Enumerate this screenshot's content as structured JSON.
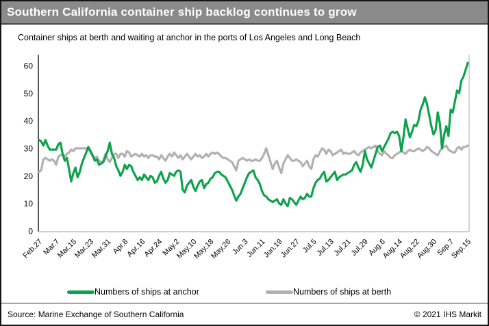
{
  "header": {
    "title": "Southern California container ship backlog continues to grow"
  },
  "subtitle": "Container ships at berth and waiting at anchor in the ports of Los Angeles and Long Beach",
  "legend": [
    {
      "label": "Numbers of ships at anchor",
      "color": "#0fa24c"
    },
    {
      "label": "Numbers of ships at berth",
      "color": "#b1b1b1"
    }
  ],
  "footer": {
    "source": "Source: Marine Exchange of Southern California",
    "copyright": "© 2021 IHS Markit"
  },
  "colors": {
    "title_bar_bg": "#8a8a8a",
    "title_text": "#ffffff",
    "anchor_line": "#0fa24c",
    "berth_line": "#b1b1b1",
    "y_axis_line": "#595959",
    "x_axis_line": "#bfbfbf",
    "plot_right_border": "#c6c6c6"
  },
  "chart_data": {
    "type": "line",
    "title": "Southern California container ship backlog continues to grow",
    "subtitle": "Container ships at berth and waiting at anchor in the ports of Los Angeles and Long Beach",
    "xlabel": "",
    "ylabel": "",
    "x_unit": "daily observations, Feb 27 – Sep 15 2021",
    "x_tick_interval_days": 8,
    "x_tick_labels": [
      "Feb.27",
      "Mar.7",
      "Mar.15",
      "Mar.23",
      "Mar.31",
      "Apr.8",
      "Apr.16",
      "Apr.24",
      "May.2",
      "May.10",
      "May.18",
      "May.26",
      "Jun.3",
      "Jun.11",
      "Jun.19",
      "Jun.27",
      "Jul.5",
      "Jul.13",
      "Jul.21",
      "Jul.29",
      "Aug.6",
      "Aug.14",
      "Aug.22",
      "Aug.30",
      "Sep.7",
      "Sep.15"
    ],
    "yticks": [
      0,
      10,
      20,
      30,
      40,
      50,
      60
    ],
    "ylim": [
      0,
      64
    ],
    "grid": false,
    "legend_position": "bottom",
    "series": [
      {
        "name": "Numbers of ships at anchor",
        "color": "#0fa24c",
        "values": [
          33,
          32.5,
          31,
          33,
          31,
          29.5,
          29.5,
          29.5,
          29.5,
          31.5,
          32,
          28,
          25.5,
          26.5,
          22.5,
          18,
          21,
          23,
          19.5,
          21.5,
          24.5,
          26.5,
          28.5,
          30.5,
          29,
          27.5,
          25.5,
          26,
          24,
          24.5,
          25,
          27,
          29,
          32,
          28,
          26.5,
          23.5,
          22,
          20,
          21.5,
          24,
          22.5,
          24,
          23.5,
          21.5,
          20,
          18.5,
          19.5,
          18.5,
          20.5,
          19.5,
          18.5,
          20,
          19.5,
          17.5,
          18,
          20,
          21.5,
          19,
          17.5,
          18.5,
          21,
          20.5,
          20,
          21.5,
          22,
          21.5,
          15,
          14,
          16.5,
          17.5,
          18.5,
          16,
          14.5,
          16.5,
          18,
          18.5,
          15.5,
          17,
          17.5,
          19,
          19.5,
          21,
          21.5,
          21.5,
          20.5,
          20,
          19.5,
          18,
          16.5,
          15,
          13,
          11,
          12.5,
          13.5,
          15.5,
          17.5,
          19.5,
          21,
          21.5,
          22,
          19.5,
          18.5,
          17,
          14.5,
          13,
          12.5,
          11.5,
          11,
          10.5,
          11,
          11.5,
          10,
          9.5,
          11.5,
          10,
          9,
          12,
          11.5,
          10.5,
          9.5,
          11,
          12.5,
          11.5,
          12,
          13.5,
          12.5,
          12.5,
          15.5,
          17.5,
          18.5,
          19,
          20.5,
          21.5,
          18,
          18.5,
          19.5,
          20.5,
          21.5,
          18.5,
          19.5,
          20,
          20.5,
          20.5,
          21,
          21.5,
          22,
          24,
          25,
          23,
          21.5,
          24,
          29,
          26,
          24.5,
          23,
          25.5,
          28,
          30.5,
          31,
          29,
          30.5,
          32,
          33.5,
          35.5,
          36,
          35.5,
          36,
          34.5,
          29,
          34,
          40.5,
          37,
          34,
          36,
          38.5,
          38,
          40,
          44,
          46,
          48.5,
          46,
          42,
          38,
          35,
          36.5,
          43,
          39,
          30,
          35,
          38,
          34.5,
          44,
          43,
          47,
          51,
          50,
          54.5,
          56,
          58.5,
          61
        ]
      },
      {
        "name": "Numbers of ships at berth",
        "color": "#b1b1b1",
        "values": [
          21.5,
          22,
          26,
          26.5,
          26,
          25.5,
          26,
          25.5,
          24,
          27,
          27.5,
          28,
          27,
          28,
          28.5,
          29.5,
          29,
          30,
          30,
          30,
          30,
          30,
          30,
          30,
          28.5,
          27,
          26.5,
          27,
          25.5,
          25,
          25.5,
          28,
          26,
          25,
          26.5,
          28,
          28,
          26.5,
          28,
          28,
          27,
          29,
          28.5,
          27,
          27.5,
          28,
          27.5,
          27,
          28,
          27,
          27.5,
          26.5,
          27.5,
          27.5,
          27,
          27,
          26,
          27.5,
          26.5,
          25.5,
          27,
          28,
          27,
          28.5,
          27.5,
          26.5,
          27.5,
          26,
          27,
          28,
          27,
          26,
          27,
          28,
          27,
          27.5,
          26.5,
          27,
          28,
          27,
          28,
          28.5,
          28,
          28.5,
          28,
          27,
          26.5,
          26.5,
          26,
          25.5,
          25,
          23.5,
          22,
          25.5,
          26,
          26.5,
          26,
          25.5,
          26,
          25.5,
          25.5,
          26,
          25.5,
          25.5,
          26.5,
          28,
          30,
          27.5,
          25,
          22.5,
          24.5,
          25.5,
          23,
          21,
          24.5,
          26,
          27.5,
          26.5,
          25.5,
          25.5,
          26,
          25.5,
          25,
          23.5,
          24.5,
          25.5,
          23.5,
          22.5,
          26,
          27.5,
          27,
          28.5,
          30,
          29.5,
          28,
          29.5,
          29,
          27.5,
          28,
          28.5,
          29,
          29.5,
          28,
          28.5,
          28,
          28,
          28.5,
          29,
          28,
          27.5,
          28.5,
          29,
          29.5,
          30,
          30.5,
          30,
          30.5,
          31,
          29,
          28,
          27.5,
          29,
          28,
          27.5,
          26.5,
          26.5,
          27.5,
          28,
          28.5,
          29,
          28.5,
          28,
          29,
          29.5,
          29,
          29,
          29.5,
          30,
          29.5,
          29,
          29.5,
          30.5,
          30,
          29,
          28.5,
          28,
          27.5,
          29,
          30,
          30.5,
          31,
          29.5,
          29,
          28.5,
          28.5,
          30,
          30.5,
          29.5,
          30.5,
          30.5,
          31
        ]
      }
    ]
  }
}
